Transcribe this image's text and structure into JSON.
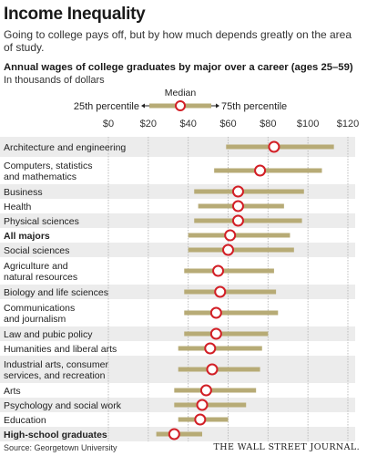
{
  "header": {
    "title": "Income Inequality",
    "deck": "Going to college pays off, but by how much depends greatly on the area of study."
  },
  "footer": {
    "source": "Source: Georgetown University",
    "publisher": "THE WALL STREET JOURNAL."
  },
  "chart_data": {
    "type": "range-dot",
    "title": "Annual wages of college graduates by major over a career (ages 25–59)",
    "subtitle": "In thousands of dollars",
    "xlim": [
      0,
      120
    ],
    "x_ticks": [
      0,
      20,
      40,
      60,
      80,
      100,
      120
    ],
    "x_tick_labels": [
      "$0",
      "$20",
      "$40",
      "$60",
      "$80",
      "$100",
      "$120"
    ],
    "legend": {
      "low_label": "25th percentile",
      "mid_label": "Median",
      "high_label": "75th percentile",
      "placement": "top-center"
    },
    "colors": {
      "range_bar": "#b7ab76",
      "median_marker_stroke": "#d21f26",
      "median_marker_fill": "#ffffff",
      "row_band": "#ececec"
    },
    "categories": [
      {
        "label": [
          "Architecture and engineering"
        ],
        "p25": 59,
        "median": 83,
        "p75": 113,
        "bold": false
      },
      {
        "label": [
          "Computers, statistics",
          "and mathematics"
        ],
        "p25": 53,
        "median": 76,
        "p75": 107,
        "bold": false
      },
      {
        "label": [
          "Business"
        ],
        "p25": 43,
        "median": 65,
        "p75": 98,
        "bold": false
      },
      {
        "label": [
          "Health"
        ],
        "p25": 45,
        "median": 65,
        "p75": 88,
        "bold": false
      },
      {
        "label": [
          "Physical sciences"
        ],
        "p25": 43,
        "median": 65,
        "p75": 97,
        "bold": false
      },
      {
        "label": [
          "All majors"
        ],
        "p25": 40,
        "median": 61,
        "p75": 91,
        "bold": true
      },
      {
        "label": [
          "Social sciences"
        ],
        "p25": 40,
        "median": 60,
        "p75": 93,
        "bold": false
      },
      {
        "label": [
          "Agriculture and",
          "natural resources"
        ],
        "p25": 38,
        "median": 55,
        "p75": 83,
        "bold": false
      },
      {
        "label": [
          "Biology and life sciences"
        ],
        "p25": 38,
        "median": 56,
        "p75": 84,
        "bold": false
      },
      {
        "label": [
          "Communications",
          "and journalism"
        ],
        "p25": 38,
        "median": 54,
        "p75": 85,
        "bold": false
      },
      {
        "label": [
          "Law and pubic policy"
        ],
        "p25": 38,
        "median": 54,
        "p75": 80,
        "bold": false
      },
      {
        "label": [
          "Humanities and liberal arts"
        ],
        "p25": 35,
        "median": 51,
        "p75": 77,
        "bold": false
      },
      {
        "label": [
          "Industrial arts, consumer",
          "services, and recreation"
        ],
        "p25": 35,
        "median": 52,
        "p75": 76,
        "bold": false
      },
      {
        "label": [
          "Arts"
        ],
        "p25": 33,
        "median": 49,
        "p75": 74,
        "bold": false
      },
      {
        "label": [
          "Psychology and social work"
        ],
        "p25": 33,
        "median": 47,
        "p75": 69,
        "bold": false
      },
      {
        "label": [
          "Education"
        ],
        "p25": 35,
        "median": 46,
        "p75": 60,
        "bold": false
      },
      {
        "label": [
          "High-school graduates"
        ],
        "p25": 24,
        "median": 33,
        "p75": 47,
        "bold": true
      }
    ]
  }
}
